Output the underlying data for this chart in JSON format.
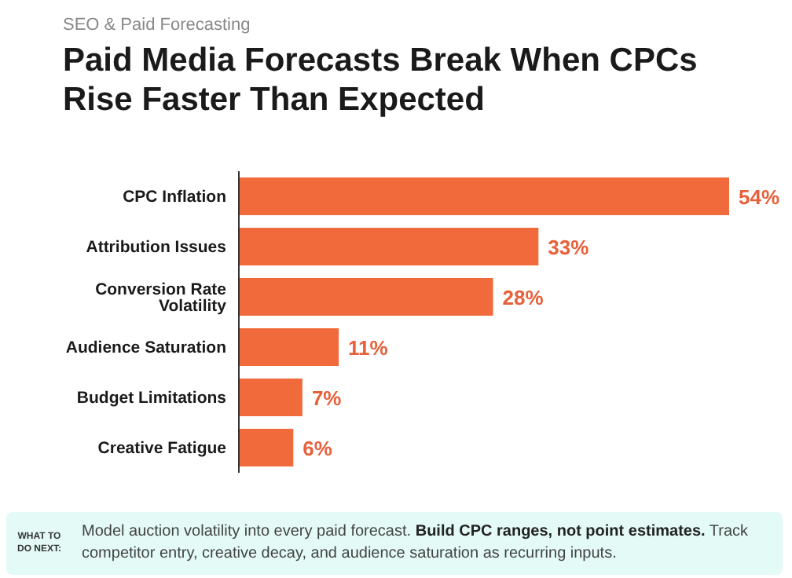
{
  "chart_data": {
    "type": "bar",
    "orientation": "horizontal",
    "subtitle": "SEO & Paid Forecasting",
    "title": "Paid Media Forecasts Break When CPCs Rise Faster Than Expected",
    "categories": [
      "CPC Inflation",
      "Attribution Issues",
      "Conversion Rate Volatility",
      "Audience Saturation",
      "Budget Limitations",
      "Creative Fatigue"
    ],
    "values": [
      54,
      33,
      28,
      11,
      7,
      6
    ],
    "value_labels": [
      "54%",
      "33%",
      "28%",
      "11%",
      "7%",
      "6%"
    ],
    "color": "#f06a3c",
    "annotations": [
      "WHAT TO DO NEXT:",
      "Model auction volatility into every paid forecast.",
      "Build CPC ranges, not point estimates.",
      "Track competitor entry, creative decay, and audience saturation as recurring inputs."
    ]
  }
}
